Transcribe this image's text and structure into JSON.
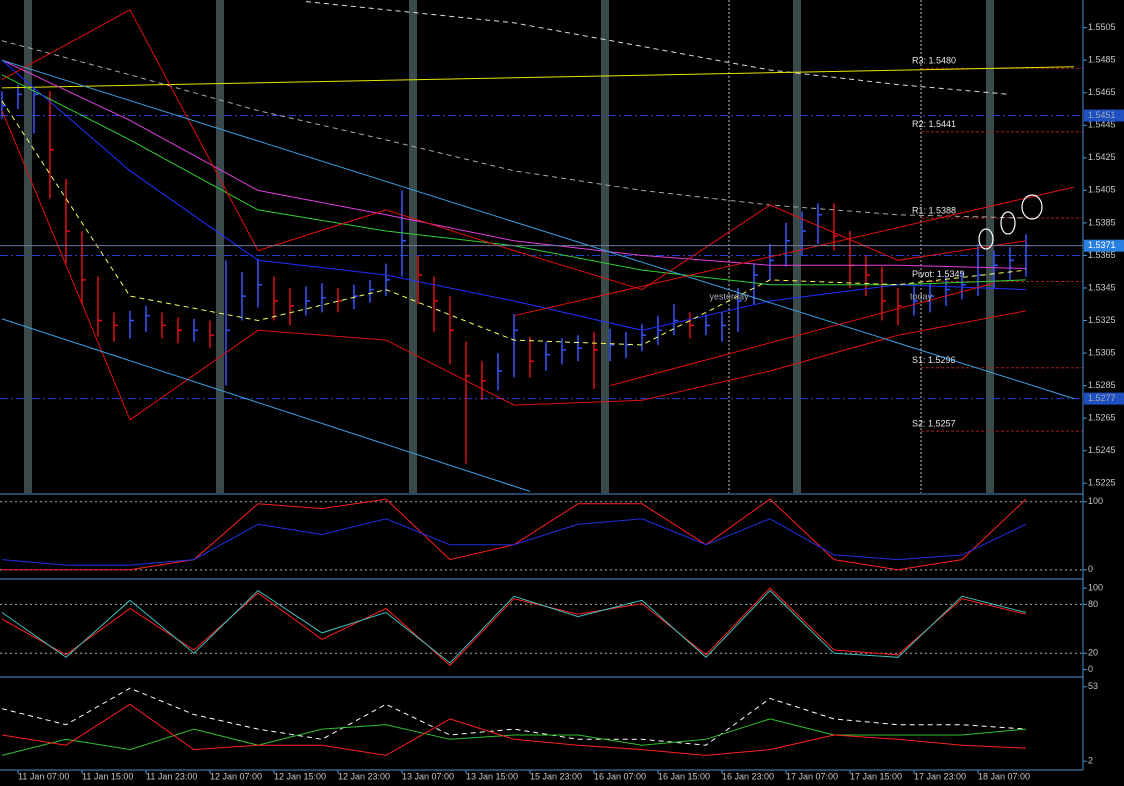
{
  "chart_data": [
    {
      "type": "ohlc",
      "xlim": [
        -0.125,
        67.5625
      ],
      "ylim": [
        1.5219,
        1.5522
      ],
      "yticks": [
        1.5505,
        1.5485,
        1.5465,
        1.5445,
        1.5425,
        1.5405,
        1.5385,
        1.5365,
        1.5345,
        1.5325,
        1.5305,
        1.5285,
        1.5265,
        1.5245,
        1.5225
      ],
      "up_color": "#3355ff",
      "down_color": "#e01010",
      "high": [
        1.5466,
        1.547,
        1.5468,
        1.5466,
        1.5412,
        1.538,
        1.5352,
        1.533,
        1.5331,
        1.5334,
        1.533,
        1.5327,
        1.5326,
        1.5325,
        1.5362,
        1.5355,
        1.5363,
        1.5352,
        1.5345,
        1.5346,
        1.5348,
        1.5345,
        1.5347,
        1.535,
        1.536,
        1.5405,
        1.5365,
        1.5352,
        1.534,
        1.5312,
        1.53,
        1.5305,
        1.5329,
        1.5315,
        1.5312,
        1.5314,
        1.5316,
        1.5318,
        1.532,
        1.5318,
        1.5323,
        1.5328,
        1.5335,
        1.533,
        1.5329,
        1.533,
        1.5345,
        1.536,
        1.5372,
        1.5385,
        1.5392,
        1.5397,
        1.5397,
        1.538,
        1.5365,
        1.5358,
        1.5345,
        1.5346,
        1.5348,
        1.5352,
        1.5355,
        1.5372,
        1.5368,
        1.537,
        1.5378
      ],
      "low": [
        1.5449,
        1.5455,
        1.544,
        1.54,
        1.536,
        1.5335,
        1.5315,
        1.5312,
        1.5314,
        1.5318,
        1.5314,
        1.5311,
        1.5312,
        1.5308,
        1.5285,
        1.5325,
        1.5333,
        1.5325,
        1.5322,
        1.5328,
        1.533,
        1.533,
        1.5332,
        1.5336,
        1.534,
        1.5352,
        1.5335,
        1.5318,
        1.5298,
        1.5237,
        1.5276,
        1.5282,
        1.529,
        1.529,
        1.5294,
        1.5298,
        1.53,
        1.5283,
        1.53,
        1.5302,
        1.5306,
        1.531,
        1.5316,
        1.5314,
        1.5316,
        1.5312,
        1.5318,
        1.5335,
        1.535,
        1.5358,
        1.5365,
        1.5372,
        1.5368,
        1.5345,
        1.534,
        1.5325,
        1.5322,
        1.5328,
        1.533,
        1.5334,
        1.5338,
        1.534,
        1.5345,
        1.535,
        1.5352
      ],
      "close": [
        1.5457,
        1.5464,
        1.5464,
        1.543,
        1.538,
        1.535,
        1.5325,
        1.5322,
        1.5325,
        1.5328,
        1.5322,
        1.5319,
        1.5319,
        1.5316,
        1.5319,
        1.534,
        1.5347,
        1.5337,
        1.5334,
        1.5337,
        1.5339,
        1.5337,
        1.534,
        1.5344,
        1.535,
        1.5374,
        1.5353,
        1.5337,
        1.5319,
        1.5291,
        1.5288,
        1.5294,
        1.5319,
        1.53,
        1.5304,
        1.5307,
        1.5308,
        1.5307,
        1.531,
        1.531,
        1.5316,
        1.5319,
        1.5325,
        1.5322,
        1.5322,
        1.5322,
        1.5337,
        1.5353,
        1.5362,
        1.5374,
        1.538,
        1.539,
        1.5377,
        1.5359,
        1.5353,
        1.5337,
        1.5334,
        1.5337,
        1.534,
        1.5344,
        1.5347,
        1.5353,
        1.5359,
        1.5362,
        1.5371
      ],
      "series": [
        {
          "color": "#dddddd",
          "style": "dashed",
          "x": [
            19,
            32,
            48,
            56,
            63
          ],
          "values": [
            1.5521,
            1.5508,
            1.5479,
            1.547,
            1.5464
          ]
        },
        {
          "color": "#aaaaaa",
          "style": "dashed",
          "x": [
            0,
            8,
            16,
            24,
            32,
            40,
            48,
            56,
            64
          ],
          "values": [
            1.5497,
            1.5476,
            1.5454,
            1.5436,
            1.5417,
            1.5405,
            1.5396,
            1.539,
            1.5388
          ]
        },
        {
          "color": "#e6e600",
          "style": "solid",
          "x": [
            0,
            67
          ],
          "values": [
            1.5468,
            1.5481
          ]
        },
        {
          "color": "#e040e0",
          "style": "solid",
          "x": [
            0,
            8,
            16,
            24,
            32,
            40,
            48,
            56,
            64
          ],
          "values": [
            1.5485,
            1.5448,
            1.5405,
            1.539,
            1.5374,
            1.5365,
            1.5359,
            1.5359,
            1.5357
          ]
        },
        {
          "color": "#30d030",
          "style": "solid",
          "x": [
            0,
            8,
            16,
            24,
            32,
            40,
            48,
            56,
            64
          ],
          "values": [
            1.5476,
            1.5436,
            1.5393,
            1.538,
            1.5371,
            1.5356,
            1.5347,
            1.5347,
            1.535
          ]
        },
        {
          "color": "#2030ff",
          "style": "solid",
          "x": [
            0,
            8,
            16,
            24,
            32,
            40,
            48,
            56,
            64
          ],
          "values": [
            1.5485,
            1.5417,
            1.5362,
            1.5353,
            1.5337,
            1.5319,
            1.5337,
            1.5347,
            1.5344
          ]
        },
        {
          "color": "#ffff60",
          "style": "dashed",
          "x": [
            0,
            8,
            16,
            24,
            32,
            40,
            48,
            56,
            64
          ],
          "values": [
            1.546,
            1.534,
            1.5325,
            1.5344,
            1.5313,
            1.531,
            1.535,
            1.5347,
            1.5356
          ]
        },
        {
          "color": "#e01010",
          "style": "solid",
          "x": [
            0,
            8,
            16,
            24,
            32,
            40,
            48,
            56,
            64
          ],
          "values": [
            1.5473,
            1.5516,
            1.5368,
            1.5393,
            1.5368,
            1.5344,
            1.5396,
            1.5362,
            1.5374
          ]
        },
        {
          "color": "#e01010",
          "style": "solid",
          "x": [
            0,
            8,
            16,
            24,
            32,
            40,
            48,
            56,
            64
          ],
          "values": [
            1.5454,
            1.5264,
            1.5319,
            1.5313,
            1.5273,
            1.5276,
            1.5294,
            1.5316,
            1.5331
          ]
        },
        {
          "color": "#3aa0e0",
          "style": "solid",
          "x": [
            0,
            67
          ],
          "values": [
            1.5485,
            1.5277
          ]
        },
        {
          "color": "#3aa0e0",
          "style": "solid",
          "x": [
            0,
            33
          ],
          "values": [
            1.5326,
            1.522
          ]
        },
        {
          "color": "#e01010",
          "style": "solid",
          "x": [
            32,
            67
          ],
          "values": [
            1.5328,
            1.5407
          ]
        },
        {
          "color": "#e01010",
          "style": "solid",
          "x": [
            38,
            62
          ],
          "values": [
            1.5285,
            1.5348
          ]
        }
      ],
      "pivots": [
        {
          "label": "R3: 1.5480",
          "value": 1.548
        },
        {
          "label": "R2: 1.5441",
          "value": 1.5441
        },
        {
          "label": "R1: 1.5388",
          "value": 1.5388
        },
        {
          "label": "Pivot: 1.5349",
          "value": 1.5349
        },
        {
          "label": "S1: 1.5296",
          "value": 1.5296
        },
        {
          "label": "S2: 1.5257",
          "value": 1.5257
        }
      ],
      "price_lines": [
        1.5451,
        1.5365,
        1.5277
      ],
      "price_labels": [
        1.5451,
        1.5277
      ],
      "current_price": 1.5371,
      "annotations": [
        "yesterday",
        "today"
      ]
    },
    {
      "type": "line",
      "xlim": [
        -0.125,
        67.5625
      ],
      "ylim": [
        -12,
        110
      ],
      "yticks": [
        0,
        100
      ],
      "grid": true,
      "series": [
        {
          "color": "#ff2020",
          "style": "solid",
          "x": [
            0,
            4,
            8,
            12,
            16,
            20,
            24,
            28,
            32,
            36,
            40,
            44,
            48,
            52,
            56,
            60,
            64
          ],
          "values": [
            0,
            0,
            0,
            15,
            97,
            90,
            104,
            15,
            37,
            97,
            97,
            37,
            104,
            15,
            0,
            15,
            104
          ]
        },
        {
          "color": "#2030e0",
          "style": "solid",
          "x": [
            0,
            4,
            8,
            12,
            16,
            20,
            24,
            28,
            32,
            36,
            40,
            44,
            48,
            52,
            56,
            60,
            64
          ],
          "values": [
            15,
            7,
            7,
            15,
            67,
            52,
            75,
            37,
            37,
            67,
            75,
            37,
            75,
            22,
            15,
            22,
            67
          ]
        }
      ]
    },
    {
      "type": "line",
      "xlim": [
        -0.125,
        67.5625
      ],
      "ylim": [
        -8,
        110
      ],
      "yticks": [
        0,
        20,
        80,
        100
      ],
      "levels": [
        20,
        80
      ],
      "series": [
        {
          "color": "#ff2020",
          "style": "solid",
          "x": [
            0,
            4,
            8,
            12,
            16,
            20,
            24,
            28,
            32,
            36,
            40,
            44,
            48,
            52,
            56,
            60,
            64
          ],
          "values": [
            62,
            18,
            75,
            24,
            94,
            37,
            75,
            5,
            87,
            68,
            81,
            18,
            100,
            24,
            18,
            87,
            68
          ]
        },
        {
          "color": "#40c0c0",
          "style": "solid",
          "x": [
            0,
            4,
            8,
            12,
            16,
            20,
            24,
            28,
            32,
            36,
            40,
            44,
            48,
            52,
            56,
            60,
            64
          ],
          "values": [
            70,
            15,
            85,
            20,
            97,
            45,
            70,
            8,
            90,
            65,
            85,
            15,
            97,
            20,
            15,
            90,
            70
          ]
        }
      ]
    },
    {
      "type": "line",
      "xlim": [
        -0.125,
        67.5625
      ],
      "ylim": [
        -4,
        59
      ],
      "yticks": [
        2,
        53
      ],
      "series": [
        {
          "color": "#ffffff",
          "style": "dashed",
          "x": [
            0,
            4,
            8,
            12,
            16,
            20,
            24,
            28,
            32,
            36,
            40,
            44,
            48,
            52,
            56,
            60,
            64
          ],
          "values": [
            38,
            27,
            52,
            34,
            24,
            17,
            41,
            20,
            24,
            17,
            17,
            13,
            45,
            31,
            27,
            27,
            24
          ]
        },
        {
          "color": "#30c030",
          "style": "solid",
          "x": [
            0,
            4,
            8,
            12,
            16,
            20,
            24,
            28,
            32,
            36,
            40,
            44,
            48,
            52,
            56,
            60,
            64
          ],
          "values": [
            6,
            17,
            10,
            24,
            13,
            24,
            27,
            17,
            20,
            20,
            13,
            17,
            31,
            20,
            20,
            20,
            24
          ]
        },
        {
          "color": "#ff2020",
          "style": "solid",
          "x": [
            0,
            4,
            8,
            12,
            16,
            20,
            24,
            28,
            32,
            36,
            40,
            44,
            48,
            52,
            56,
            60,
            64
          ],
          "values": [
            20,
            13,
            41,
            10,
            13,
            13,
            6,
            31,
            17,
            13,
            10,
            6,
            10,
            20,
            17,
            13,
            11
          ]
        }
      ],
      "xticks": [
        {
          "value": 1,
          "label": "11 Jan 07:00"
        },
        {
          "value": 5,
          "label": "11 Jan 15:00"
        },
        {
          "value": 9,
          "label": "11 Jan 23:00"
        },
        {
          "value": 13,
          "label": "12 Jan 07:00"
        },
        {
          "value": 17,
          "label": "12 Jan 15:00"
        },
        {
          "value": 21,
          "label": "12 Jan 23:00"
        },
        {
          "value": 25,
          "label": "13 Jan 07:00"
        },
        {
          "value": 29,
          "label": "13 Jan 15:00"
        },
        {
          "value": 33,
          "label": "15 Jan 23:00"
        },
        {
          "value": 37,
          "label": "16 Jan 07:00"
        },
        {
          "value": 41,
          "label": "16 Jan 15:00"
        },
        {
          "value": 45,
          "label": "16 Jan 23:00"
        },
        {
          "value": 49,
          "label": "17 Jan 07:00"
        },
        {
          "value": 53,
          "label": "17 Jan 15:00"
        },
        {
          "value": 57,
          "label": "17 Jan 23:00"
        },
        {
          "value": 61,
          "label": "18 Jan 07:00"
        }
      ]
    }
  ]
}
